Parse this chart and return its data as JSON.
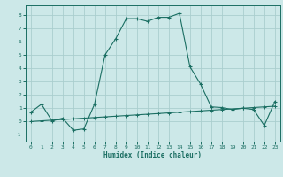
{
  "xlabel": "Humidex (Indice chaleur)",
  "background_color": "#cce8e8",
  "grid_color": "#aacece",
  "line_color": "#1a6e62",
  "x_line1": [
    0,
    1,
    2,
    3,
    4,
    5,
    6,
    7,
    8,
    9,
    10,
    11,
    12,
    13,
    14,
    15,
    16,
    17,
    18,
    19,
    20,
    21,
    22,
    23
  ],
  "y_line1": [
    0.7,
    1.3,
    0.05,
    0.25,
    -0.65,
    -0.55,
    1.3,
    5.0,
    6.2,
    7.7,
    7.7,
    7.5,
    7.8,
    7.8,
    8.1,
    4.1,
    2.8,
    1.1,
    1.05,
    0.9,
    1.0,
    0.9,
    -0.3,
    1.5
  ],
  "x_line2": [
    0,
    1,
    2,
    3,
    4,
    5,
    6,
    7,
    8,
    9,
    10,
    11,
    12,
    13,
    14,
    15,
    16,
    17,
    18,
    19,
    20,
    21,
    22,
    23
  ],
  "y_line2": [
    0.0,
    0.05,
    0.1,
    0.15,
    0.2,
    0.25,
    0.3,
    0.35,
    0.4,
    0.45,
    0.5,
    0.55,
    0.6,
    0.65,
    0.7,
    0.75,
    0.8,
    0.85,
    0.9,
    0.95,
    1.0,
    1.05,
    1.1,
    1.15
  ],
  "ylim": [
    -1.5,
    8.7
  ],
  "xlim": [
    -0.5,
    23.5
  ],
  "yticks": [
    -1,
    0,
    1,
    2,
    3,
    4,
    5,
    6,
    7,
    8
  ],
  "xticks": [
    0,
    1,
    2,
    3,
    4,
    5,
    6,
    7,
    8,
    9,
    10,
    11,
    12,
    13,
    14,
    15,
    16,
    17,
    18,
    19,
    20,
    21,
    22,
    23
  ]
}
